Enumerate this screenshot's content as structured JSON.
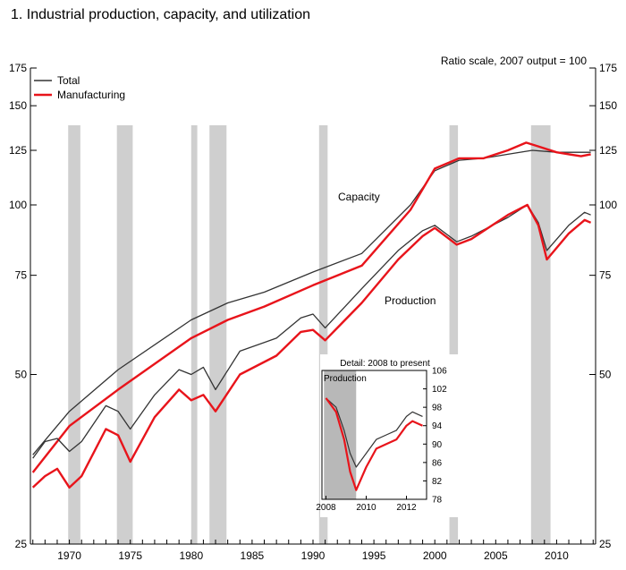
{
  "title": "1.  Industrial production, capacity, and utilization",
  "colors": {
    "total": "#333333",
    "manufacturing": "#e8141b",
    "recession": "#cfcfcf",
    "inset_shade": "#b8b8b8"
  },
  "chart_data": [
    {
      "type": "line",
      "scale": "log",
      "scale_note": "Ratio scale, 2007 output = 100",
      "ylim": [
        25,
        175
      ],
      "xlim": [
        1966.8,
        2013.2
      ],
      "y_ticks": [
        25,
        50,
        75,
        100,
        125,
        150,
        175
      ],
      "x_ticks": [
        1970,
        1975,
        1980,
        1985,
        1990,
        1995,
        2000,
        2005,
        2010
      ],
      "legend": [
        "Total",
        "Manufacturing"
      ],
      "legend_position": "top-left",
      "annotations": {
        "capacity": "Capacity",
        "production": "Production"
      },
      "recessions": [
        [
          1969.9,
          1970.9
        ],
        [
          1973.9,
          1975.2
        ],
        [
          1980.0,
          1980.5
        ],
        [
          1981.5,
          1982.9
        ],
        [
          1990.5,
          1991.2
        ],
        [
          2001.2,
          2001.9
        ],
        [
          2007.9,
          2009.5
        ]
      ],
      "series": [
        {
          "name": "Total",
          "kind": "Capacity",
          "color_key": "total",
          "points": [
            [
              1967,
              36
            ],
            [
              1970,
              43
            ],
            [
              1974,
              51
            ],
            [
              1980,
              62.5
            ],
            [
              1983,
              67
            ],
            [
              1986,
              70
            ],
            [
              1990,
              76
            ],
            [
              1994,
              82
            ],
            [
              1998,
              100
            ],
            [
              2000,
              115
            ],
            [
              2002,
              120
            ],
            [
              2004,
              121
            ],
            [
              2006,
              123
            ],
            [
              2008,
              125
            ],
            [
              2010,
              124
            ],
            [
              2012.8,
              124
            ]
          ]
        },
        {
          "name": "Manufacturing",
          "kind": "Capacity",
          "color_key": "manufacturing",
          "points": [
            [
              1967,
              33.5
            ],
            [
              1970,
              40.5
            ],
            [
              1974,
              47
            ],
            [
              1980,
              58
            ],
            [
              1983,
              62.5
            ],
            [
              1986,
              66
            ],
            [
              1990,
              72
            ],
            [
              1994,
              78
            ],
            [
              1998,
              98
            ],
            [
              2000,
              116
            ],
            [
              2002,
              121
            ],
            [
              2004,
              121
            ],
            [
              2006,
              125
            ],
            [
              2007.5,
              129
            ],
            [
              2008.5,
              127
            ],
            [
              2010,
              124
            ],
            [
              2012,
              122
            ],
            [
              2012.8,
              123
            ]
          ]
        },
        {
          "name": "Total",
          "kind": "Production",
          "color_key": "total",
          "points": [
            [
              1967,
              35.5
            ],
            [
              1968,
              38
            ],
            [
              1969,
              38.5
            ],
            [
              1970,
              36.5
            ],
            [
              1971,
              38
            ],
            [
              1973,
              44
            ],
            [
              1974,
              43
            ],
            [
              1975,
              40
            ],
            [
              1977,
              46
            ],
            [
              1979,
              51
            ],
            [
              1980,
              50
            ],
            [
              1981,
              51.5
            ],
            [
              1982,
              47
            ],
            [
              1984,
              55
            ],
            [
              1987,
              58
            ],
            [
              1989,
              63
            ],
            [
              1990,
              64
            ],
            [
              1991,
              60.5
            ],
            [
              1994,
              71
            ],
            [
              1997,
              83
            ],
            [
              1999,
              90
            ],
            [
              2000,
              92
            ],
            [
              2001.8,
              86
            ],
            [
              2003,
              88
            ],
            [
              2006,
              95
            ],
            [
              2007.6,
              100
            ],
            [
              2008.5,
              93
            ],
            [
              2009.2,
              83
            ],
            [
              2011,
              92
            ],
            [
              2012.3,
              97
            ],
            [
              2012.8,
              96
            ]
          ]
        },
        {
          "name": "Manufacturing",
          "kind": "Production",
          "color_key": "manufacturing",
          "points": [
            [
              1967,
              31.5
            ],
            [
              1968,
              33
            ],
            [
              1969,
              34
            ],
            [
              1970,
              31.5
            ],
            [
              1971,
              33
            ],
            [
              1973,
              40
            ],
            [
              1974,
              39
            ],
            [
              1975,
              35
            ],
            [
              1977,
              42
            ],
            [
              1979,
              47
            ],
            [
              1980,
              45
            ],
            [
              1981,
              46
            ],
            [
              1982,
              43
            ],
            [
              1984,
              50
            ],
            [
              1987,
              54
            ],
            [
              1989,
              59.5
            ],
            [
              1990,
              60
            ],
            [
              1991,
              57.5
            ],
            [
              1994,
              67
            ],
            [
              1997,
              80
            ],
            [
              1999,
              88
            ],
            [
              2000,
              91
            ],
            [
              2001.8,
              85
            ],
            [
              2003,
              87
            ],
            [
              2006,
              96
            ],
            [
              2007.6,
              100
            ],
            [
              2008.5,
              92
            ],
            [
              2009.2,
              80
            ],
            [
              2011,
              89
            ],
            [
              2012.3,
              94
            ],
            [
              2012.8,
              93
            ]
          ]
        }
      ]
    },
    {
      "type": "line",
      "title": "Detail: 2008 to present",
      "ylim": [
        78,
        106
      ],
      "y_ticks": [
        78,
        82,
        86,
        90,
        94,
        98,
        102,
        106
      ],
      "x_ticks": [
        2008,
        2010,
        2012
      ],
      "xlim": [
        2007.8,
        2013.0
      ],
      "shade": [
        2007.9,
        2009.5
      ],
      "shade_label": "Production",
      "series": [
        {
          "name": "Total",
          "color_key": "total",
          "points": [
            [
              2008,
              100
            ],
            [
              2008.5,
              98
            ],
            [
              2008.9,
              93
            ],
            [
              2009.2,
              88
            ],
            [
              2009.5,
              85
            ],
            [
              2010,
              88
            ],
            [
              2010.5,
              91
            ],
            [
              2011,
              92
            ],
            [
              2011.5,
              93
            ],
            [
              2012,
              96
            ],
            [
              2012.3,
              97
            ],
            [
              2012.8,
              96
            ]
          ]
        },
        {
          "name": "Manufacturing",
          "color_key": "manufacturing",
          "points": [
            [
              2008,
              100
            ],
            [
              2008.5,
              97
            ],
            [
              2008.9,
              91
            ],
            [
              2009.2,
              84
            ],
            [
              2009.5,
              80
            ],
            [
              2010,
              85
            ],
            [
              2010.5,
              89
            ],
            [
              2011,
              90
            ],
            [
              2011.5,
              91
            ],
            [
              2012,
              94
            ],
            [
              2012.3,
              95
            ],
            [
              2012.8,
              94
            ]
          ]
        }
      ]
    }
  ]
}
